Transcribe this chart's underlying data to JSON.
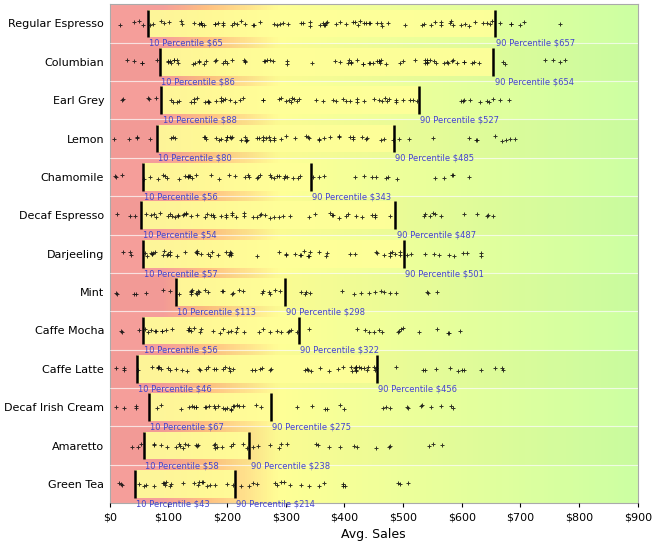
{
  "categories": [
    "Regular Espresso",
    "Columbian",
    "Earl Grey",
    "Lemon",
    "Chamomile",
    "Decaf Espresso",
    "Darjeeling",
    "Mint",
    "Caffe Mocha",
    "Caffe Latte",
    "Decaf Irish Cream",
    "Amaretto",
    "Green Tea"
  ],
  "p10": [
    65,
    86,
    88,
    80,
    56,
    54,
    57,
    113,
    56,
    46,
    67,
    58,
    43
  ],
  "p90": [
    657,
    654,
    527,
    485,
    343,
    487,
    501,
    298,
    322,
    456,
    275,
    238,
    214
  ],
  "xmin": 0,
  "xmax": 900,
  "xlabel": "Avg. Sales",
  "xtick_labels": [
    "$0",
    "$100",
    "$200",
    "$300",
    "$400",
    "$500",
    "$600",
    "$700",
    "$800",
    "$900"
  ],
  "xtick_values": [
    0,
    100,
    200,
    300,
    400,
    500,
    600,
    700,
    800,
    900
  ],
  "yellow_band_color": "#FFFF99",
  "label_color": "#4444CC",
  "dot_color": "#111111",
  "line_color": "#000000",
  "row_colors": [
    "#FFFFFF",
    "#EBEBEB"
  ],
  "fig_bg": "#FFFFFF",
  "figsize": [
    6.56,
    5.45
  ],
  "dpi": 100,
  "bg_gradient": [
    [
      0.0,
      [
        0.96,
        0.54,
        0.52
      ]
    ],
    [
      0.1,
      [
        0.96,
        0.54,
        0.52
      ]
    ],
    [
      0.18,
      [
        1.0,
        0.7,
        0.4
      ]
    ],
    [
      0.32,
      [
        1.0,
        1.0,
        0.5
      ]
    ],
    [
      1.0,
      [
        0.76,
        1.0,
        0.56
      ]
    ]
  ]
}
